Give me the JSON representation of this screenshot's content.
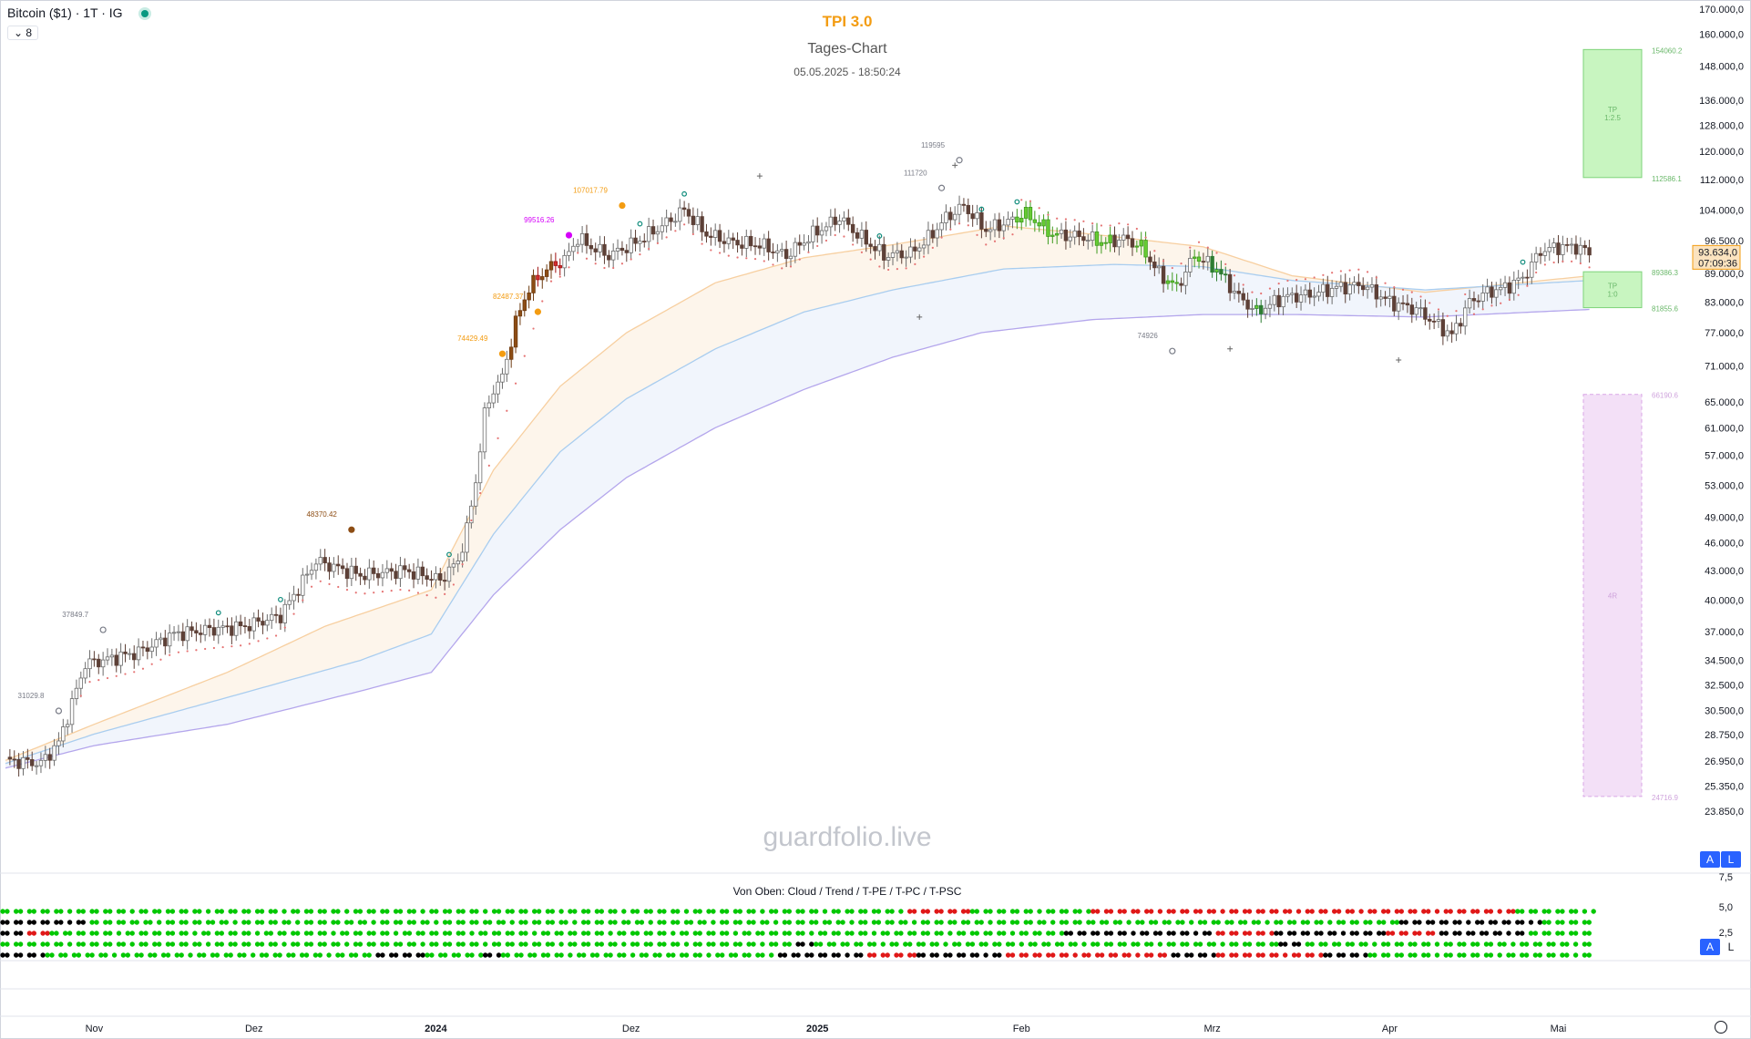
{
  "header": {
    "symbol": "Bitcoin ($1) · 1T · IG",
    "collapse": "8"
  },
  "titles": {
    "title": "TPI 3.0",
    "subtitle": "Tages-Chart",
    "timestamp": "05.05.2025 - 18:50:24"
  },
  "watermark": "guardfolio.live",
  "indicator_label": "Von Oben: Cloud / Trend / T-PE / T-PC / T-PSC",
  "badges": {
    "auto": "A",
    "log": "L"
  },
  "colors": {
    "up": "#ffffff",
    "down": "#5d4037",
    "bull": "#66cc33",
    "bear": "#d32f2f",
    "accent": "#f39c12",
    "magenta": "#e91e63",
    "green_dot": "#00c800",
    "red_dot": "#e01818",
    "black_dot": "#000000",
    "tp_box": "#c8f5c0",
    "risk_box": "#f3e0f7"
  },
  "chart_data": {
    "type": "candlestick",
    "title": "TPI 3.0",
    "y_scale": "log",
    "ylim": [
      22500,
      172000
    ],
    "y_ticks": [
      {
        "value": 170000,
        "label": "170.000,0"
      },
      {
        "value": 160000,
        "label": "160.000,0"
      },
      {
        "value": 148000,
        "label": "148.000,0"
      },
      {
        "value": 136000,
        "label": "136.000,0"
      },
      {
        "value": 128000,
        "label": "128.000,0"
      },
      {
        "value": 120000,
        "label": "120.000,0"
      },
      {
        "value": 112000,
        "label": "112.000,0"
      },
      {
        "value": 104000,
        "label": "104.000,0"
      },
      {
        "value": 96500,
        "label": "96.500,0"
      },
      {
        "value": 89000,
        "label": "89.000,0"
      },
      {
        "value": 83000,
        "label": "83.000,0"
      },
      {
        "value": 77000,
        "label": "77.000,0"
      },
      {
        "value": 71000,
        "label": "71.000,0"
      },
      {
        "value": 65000,
        "label": "65.000,0"
      },
      {
        "value": 61000,
        "label": "61.000,0"
      },
      {
        "value": 57000,
        "label": "57.000,0"
      },
      {
        "value": 53000,
        "label": "53.000,0"
      },
      {
        "value": 49000,
        "label": "49.000,0"
      },
      {
        "value": 46000,
        "label": "46.000,0"
      },
      {
        "value": 43000,
        "label": "43.000,0"
      },
      {
        "value": 40000,
        "label": "40.000,0"
      },
      {
        "value": 37000,
        "label": "37.000,0"
      },
      {
        "value": 34500,
        "label": "34.500,0"
      },
      {
        "value": 32500,
        "label": "32.500,0"
      },
      {
        "value": 30500,
        "label": "30.500,0"
      },
      {
        "value": 28750,
        "label": "28.750,0"
      },
      {
        "value": 26950,
        "label": "26.950,0"
      },
      {
        "value": 25350,
        "label": "25.350,0"
      },
      {
        "value": 23850,
        "label": "23.850,0"
      }
    ],
    "x_labels": [
      "Nov",
      "Dez",
      "2024",
      "Dez",
      "2025",
      "Feb",
      "Mrz",
      "Apr",
      "Mai"
    ],
    "x_label_index": [
      20,
      56,
      97,
      141,
      183,
      229,
      272,
      312,
      350
    ],
    "x_label_bold": [
      false,
      false,
      true,
      false,
      true,
      false,
      false,
      false,
      false
    ],
    "last_price": {
      "value": 93634,
      "label": "93.634,0",
      "countdown": "07:09:36"
    },
    "price_anchors": [
      [
        0,
        27000
      ],
      [
        8,
        26800
      ],
      [
        12,
        28200
      ],
      [
        18,
        34200
      ],
      [
        22,
        34500
      ],
      [
        30,
        35200
      ],
      [
        38,
        36800
      ],
      [
        46,
        37200
      ],
      [
        54,
        37500
      ],
      [
        62,
        38500
      ],
      [
        70,
        44000
      ],
      [
        80,
        42500
      ],
      [
        90,
        43000
      ],
      [
        98,
        42000
      ],
      [
        102,
        44000
      ],
      [
        104,
        47500
      ],
      [
        106,
        53500
      ],
      [
        108,
        63000
      ],
      [
        110,
        67000
      ],
      [
        112,
        69000
      ],
      [
        115,
        79000
      ],
      [
        118,
        86000
      ],
      [
        122,
        90000
      ],
      [
        126,
        92000
      ],
      [
        129,
        97000
      ],
      [
        132,
        95000
      ],
      [
        136,
        93000
      ],
      [
        142,
        96000
      ],
      [
        148,
        100000
      ],
      [
        153,
        104000
      ],
      [
        158,
        98000
      ],
      [
        164,
        96000
      ],
      [
        170,
        95500
      ],
      [
        176,
        93000
      ],
      [
        182,
        98000
      ],
      [
        188,
        102000
      ],
      [
        192,
        98000
      ],
      [
        198,
        93000
      ],
      [
        204,
        93500
      ],
      [
        208,
        97000
      ],
      [
        212,
        102000
      ],
      [
        216,
        105000
      ],
      [
        221,
        99000
      ],
      [
        226,
        101000
      ],
      [
        230,
        103000
      ],
      [
        236,
        98000
      ],
      [
        242,
        97500
      ],
      [
        248,
        96000
      ],
      [
        252,
        97000
      ],
      [
        256,
        95000
      ],
      [
        260,
        89000
      ],
      [
        264,
        86000
      ],
      [
        268,
        93000
      ],
      [
        273,
        90000
      ],
      [
        278,
        84000
      ],
      [
        282,
        81000
      ],
      [
        288,
        84000
      ],
      [
        294,
        84500
      ],
      [
        300,
        86000
      ],
      [
        306,
        86500
      ],
      [
        312,
        83000
      ],
      [
        318,
        81500
      ],
      [
        322,
        79000
      ],
      [
        326,
        76500
      ],
      [
        330,
        83000
      ],
      [
        334,
        85000
      ],
      [
        338,
        86000
      ],
      [
        342,
        88000
      ],
      [
        346,
        94000
      ],
      [
        350,
        95000
      ],
      [
        354,
        95000
      ],
      [
        357,
        93634
      ]
    ],
    "bull_bars": [
      [
        228,
        238
      ],
      [
        246,
        250
      ],
      [
        255,
        258
      ],
      [
        262,
        265
      ],
      [
        268,
        270
      ]
    ],
    "bear_bars": [
      [
        272,
        276
      ],
      [
        282,
        284
      ]
    ],
    "rally_bars": [
      [
        114,
        126
      ]
    ],
    "sar_start": 17,
    "ema_fast_anchors": [
      [
        0,
        27000
      ],
      [
        20,
        29500
      ],
      [
        50,
        33500
      ],
      [
        72,
        37500
      ],
      [
        96,
        41000
      ],
      [
        110,
        55000
      ],
      [
        125,
        67500
      ],
      [
        140,
        77000
      ],
      [
        160,
        87000
      ],
      [
        180,
        92500
      ],
      [
        200,
        95500
      ],
      [
        225,
        100000
      ],
      [
        245,
        98000
      ],
      [
        270,
        95000
      ],
      [
        290,
        88500
      ],
      [
        320,
        85000
      ],
      [
        357,
        88500
      ]
    ],
    "ema_mid_anchors": [
      [
        0,
        26800
      ],
      [
        20,
        28800
      ],
      [
        50,
        31500
      ],
      [
        80,
        34500
      ],
      [
        96,
        36800
      ],
      [
        110,
        47000
      ],
      [
        125,
        57500
      ],
      [
        140,
        65500
      ],
      [
        160,
        74000
      ],
      [
        180,
        81000
      ],
      [
        200,
        85500
      ],
      [
        225,
        90000
      ],
      [
        250,
        91000
      ],
      [
        270,
        90500
      ],
      [
        290,
        87500
      ],
      [
        320,
        85500
      ],
      [
        357,
        87500
      ]
    ],
    "ema_slow_anchors": [
      [
        0,
        26500
      ],
      [
        20,
        28000
      ],
      [
        50,
        29500
      ],
      [
        80,
        32000
      ],
      [
        96,
        33500
      ],
      [
        110,
        40500
      ],
      [
        125,
        47500
      ],
      [
        140,
        54000
      ],
      [
        160,
        61000
      ],
      [
        180,
        67000
      ],
      [
        200,
        72500
      ],
      [
        220,
        77000
      ],
      [
        245,
        79500
      ],
      [
        270,
        80500
      ],
      [
        290,
        80500
      ],
      [
        320,
        80000
      ],
      [
        357,
        81500
      ]
    ],
    "annotations": [
      {
        "label": "31029.8",
        "i": 12,
        "price": 31029.8,
        "color": "#787b86"
      },
      {
        "label": "37849.7",
        "i": 22,
        "price": 37849.7,
        "color": "#787b86"
      },
      {
        "label": "48370.42",
        "i": 78,
        "price": 48370.42,
        "color": "#8d4d14"
      },
      {
        "label": "74429.49",
        "i": 112,
        "price": 74429.49,
        "color": "#f39c12"
      },
      {
        "label": "82487.37",
        "i": 120,
        "price": 82487.37,
        "color": "#f39c12"
      },
      {
        "label": "99516.26",
        "i": 127,
        "price": 99516.26,
        "color": "#d500f9"
      },
      {
        "label": "107017.79",
        "i": 139,
        "price": 107017.79,
        "color": "#f39c12"
      },
      {
        "label": "111720",
        "i": 211,
        "price": 111720,
        "color": "#787b86"
      },
      {
        "label": "119595",
        "i": 215,
        "price": 119595,
        "color": "#787b86"
      },
      {
        "label": "74926",
        "i": 263,
        "price": 74926,
        "color": "#787b86"
      }
    ],
    "zones": [
      {
        "type": "tp",
        "label": "TP 1:2.5",
        "top": 154060.2,
        "bottom": 112586.1,
        "top_label": "154060.2",
        "bottom_label": "112586.1"
      },
      {
        "type": "tp",
        "label": "TP 1:0",
        "top": 89386.3,
        "bottom": 81855.6,
        "top_label": "89386.3",
        "bottom_label": "81855.6"
      },
      {
        "type": "risk",
        "label": "4R",
        "top": 66190.6,
        "bottom": 24716.9,
        "top_label": "66190.6",
        "bottom_label": "24716.9"
      }
    ],
    "indicator": {
      "label": "Von Oben: Cloud / Trend / T-PE / T-PC / T-PSC",
      "y_ticks": [
        {
          "label": "7,5"
        },
        {
          "label": "5,0"
        },
        {
          "label": "2,5"
        }
      ],
      "rows": [
        "Cloud",
        "Trend",
        "T-PE",
        "T-PC",
        "T-PSC"
      ],
      "segments": [
        [
          [
            "g",
            0,
            203
          ],
          [
            "r",
            203,
            217
          ],
          [
            "g",
            217,
            244
          ],
          [
            "r",
            244,
            339
          ],
          [
            "g",
            339,
            357
          ]
        ],
        [
          [
            "k",
            0,
            20
          ],
          [
            "g",
            20,
            313
          ],
          [
            "k",
            313,
            345
          ],
          [
            "g",
            345,
            357
          ]
        ],
        [
          [
            "k",
            0,
            6
          ],
          [
            "r",
            6,
            11
          ],
          [
            "g",
            11,
            238
          ],
          [
            "k",
            238,
            272
          ],
          [
            "r",
            272,
            285
          ],
          [
            "k",
            285,
            310
          ],
          [
            "r",
            310,
            322
          ],
          [
            "k",
            322,
            342
          ],
          [
            "g",
            342,
            357
          ]
        ],
        [
          [
            "g",
            0,
            178
          ],
          [
            "k",
            178,
            182
          ],
          [
            "g",
            182,
            286
          ],
          [
            "k",
            286,
            292
          ],
          [
            "g",
            292,
            357
          ]
        ],
        [
          [
            "k",
            0,
            10
          ],
          [
            "g",
            10,
            84
          ],
          [
            "k",
            84,
            95
          ],
          [
            "g",
            95,
            108
          ],
          [
            "k",
            108,
            112
          ],
          [
            "g",
            112,
            174
          ],
          [
            "k",
            174,
            194
          ],
          [
            "r",
            194,
            205
          ],
          [
            "k",
            205,
            225
          ],
          [
            "r",
            225,
            262
          ],
          [
            "k",
            262,
            272
          ],
          [
            "r",
            272,
            296
          ],
          [
            "k",
            296,
            306
          ],
          [
            "g",
            306,
            357
          ]
        ]
      ]
    }
  }
}
